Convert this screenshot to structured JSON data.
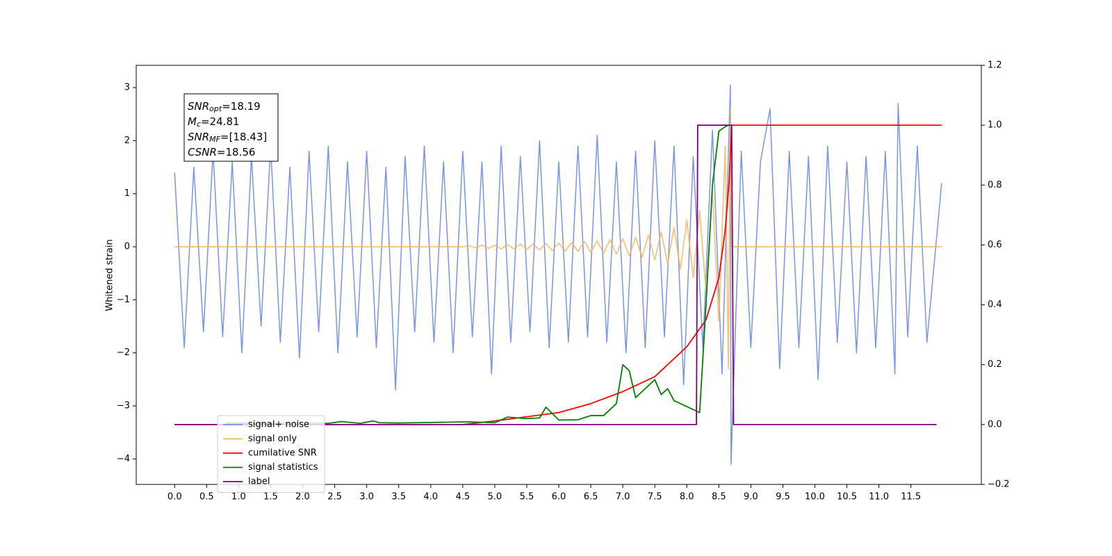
{
  "chart_data": {
    "type": "line",
    "ylabel": "Whitened strain",
    "annotation": [
      {
        "main": "SNR",
        "sub": "opt",
        "rest": "=18.19"
      },
      {
        "main": "M",
        "sub": "c",
        "rest": "=24.81"
      },
      {
        "main": "SNR",
        "sub": "MF",
        "rest": "=[18.43]"
      },
      {
        "main": "CSNR",
        "sub": "",
        "rest": "=18.56"
      }
    ],
    "xlim": [
      -0.6,
      12.6
    ],
    "ylim": [
      -4.48,
      3.42
    ],
    "y2lim": [
      -0.2,
      1.2
    ],
    "xticks": [
      {
        "value": 0,
        "label": "0.0"
      },
      0.5,
      {
        "value": 1,
        "label": "1.0"
      },
      1.5,
      {
        "value": 2,
        "label": "2.0"
      },
      2.5,
      {
        "value": 3,
        "label": "3.0"
      },
      3.5,
      {
        "value": 4,
        "label": "4.0"
      },
      4.5,
      {
        "value": 5,
        "label": "5.0"
      },
      5.5,
      {
        "value": 6,
        "label": "6.0"
      },
      6.5,
      {
        "value": 7,
        "label": "7.0"
      },
      7.5,
      {
        "value": 8,
        "label": "8.0"
      },
      8.5,
      {
        "value": 9,
        "label": "9.0"
      },
      9.5,
      {
        "value": 10,
        "label": "10.0"
      },
      10.5,
      {
        "value": 11,
        "label": "11.0"
      },
      11.5
    ],
    "yticks": [
      {
        "value": -4,
        "label": "−4"
      },
      {
        "value": -3,
        "label": "−3"
      },
      {
        "value": -2,
        "label": "−2"
      },
      {
        "value": -1,
        "label": "−1"
      },
      0,
      1,
      2,
      3
    ],
    "y2ticks": [
      {
        "value": -0.2,
        "label": "−0.2"
      },
      {
        "value": 0,
        "label": "0.0"
      },
      0.2,
      0.4,
      0.6,
      0.8,
      {
        "value": 1,
        "label": "1.0"
      },
      1.2
    ],
    "series": [
      {
        "name": "signal+ noise",
        "color": "#7895e8",
        "x": [
          0,
          0.15,
          0.3,
          0.45,
          0.6,
          0.75,
          0.9,
          1.05,
          1.2,
          1.35,
          1.5,
          1.65,
          1.8,
          1.95,
          2.1,
          2.25,
          2.4,
          2.55,
          2.7,
          2.85,
          3,
          3.15,
          3.3,
          3.45,
          3.6,
          3.75,
          3.9,
          4.05,
          4.2,
          4.35,
          4.5,
          4.65,
          4.8,
          4.95,
          5.1,
          5.25,
          5.4,
          5.55,
          5.7,
          5.85,
          6,
          6.15,
          6.3,
          6.45,
          6.6,
          6.75,
          6.9,
          7.05,
          7.2,
          7.35,
          7.5,
          7.65,
          7.8,
          7.95,
          8.1,
          8.25,
          8.4,
          8.55,
          8.68,
          8.69,
          8.85,
          9,
          9.15,
          9.3,
          9.45,
          9.6,
          9.75,
          9.9,
          10.05,
          10.2,
          10.35,
          10.5,
          10.65,
          10.8,
          10.95,
          11.1,
          11.25,
          11.3,
          11.45,
          11.6,
          11.75,
          11.98
        ],
        "values": [
          1.4,
          -1.9,
          1.5,
          -1.6,
          1.8,
          -1.7,
          1.6,
          -2.0,
          1.7,
          -1.5,
          1.9,
          -1.8,
          1.5,
          -2.1,
          1.8,
          -1.6,
          1.9,
          -2.0,
          1.6,
          -1.7,
          1.8,
          -1.9,
          1.5,
          -2.7,
          1.7,
          -1.6,
          1.9,
          -1.8,
          1.6,
          -2.0,
          1.8,
          -1.7,
          1.6,
          -2.4,
          1.9,
          -1.8,
          1.7,
          -1.6,
          2.0,
          -1.9,
          1.6,
          -1.8,
          1.9,
          -1.7,
          2.1,
          -1.8,
          1.6,
          -2.0,
          1.8,
          -1.9,
          2.0,
          -1.7,
          1.9,
          -2.6,
          1.7,
          -1.9,
          2.2,
          -2.4,
          3.05,
          -4.1,
          1.8,
          -1.9,
          1.6,
          2.6,
          -2.3,
          1.8,
          -1.9,
          1.7,
          -2.5,
          1.9,
          -1.8,
          1.6,
          -2.0,
          1.7,
          -1.9,
          1.8,
          -2.4,
          2.7,
          -1.7,
          1.9,
          -1.8,
          1.2
        ]
      },
      {
        "name": "signal only",
        "color": "#f5b55a",
        "x": [
          0,
          4.5,
          4.6,
          4.7,
          4.8,
          4.9,
          5.0,
          5.1,
          5.2,
          5.3,
          5.4,
          5.5,
          5.6,
          5.7,
          5.8,
          5.9,
          6.0,
          6.1,
          6.2,
          6.3,
          6.4,
          6.5,
          6.6,
          6.7,
          6.8,
          6.9,
          7.0,
          7.1,
          7.2,
          7.3,
          7.4,
          7.5,
          7.6,
          7.7,
          7.8,
          7.9,
          8.0,
          8.1,
          8.2,
          8.3,
          8.4,
          8.5,
          8.6,
          8.65,
          8.68,
          8.7,
          11.98
        ],
        "values": [
          0,
          0,
          0.02,
          -0.02,
          0.03,
          -0.03,
          0.03,
          -0.04,
          0.04,
          -0.04,
          0.05,
          -0.05,
          0.05,
          -0.06,
          0.06,
          -0.07,
          0.07,
          -0.08,
          0.08,
          -0.09,
          0.1,
          -0.1,
          0.11,
          -0.12,
          0.13,
          -0.14,
          0.15,
          -0.17,
          0.18,
          -0.2,
          0.22,
          -0.25,
          0.28,
          -0.32,
          0.36,
          -0.42,
          0.5,
          -0.58,
          0.68,
          -0.85,
          1.05,
          -1.4,
          1.9,
          -2.3,
          2.6,
          0,
          0
        ]
      },
      {
        "name": "cumilative SNR",
        "color": "#ff0000",
        "axis": "y2",
        "x": [
          0,
          4.5,
          5.0,
          5.5,
          6.0,
          6.5,
          7.0,
          7.5,
          8.0,
          8.3,
          8.5,
          8.6,
          8.66,
          8.7,
          11.98
        ],
        "values": [
          0,
          0,
          0.012,
          0.026,
          0.04,
          0.07,
          0.11,
          0.16,
          0.26,
          0.35,
          0.49,
          0.65,
          0.81,
          1.0,
          1.0
        ]
      },
      {
        "name": "signal statistics",
        "color": "#008000",
        "axis": "y2",
        "x": [
          0.8,
          1.5,
          2.0,
          2.4,
          2.6,
          2.9,
          3.1,
          3.2,
          3.5,
          4.0,
          4.3,
          4.6,
          5.0,
          5.2,
          5.5,
          5.7,
          5.8,
          6.0,
          6.3,
          6.5,
          6.7,
          6.9,
          7.0,
          7.1,
          7.2,
          7.3,
          7.5,
          7.6,
          7.7,
          7.8,
          8.0,
          8.1,
          8.2,
          8.3,
          8.4,
          8.5,
          8.6,
          8.65
        ],
        "values": [
          0.005,
          0.004,
          0.006,
          0.004,
          0.01,
          0.004,
          0.012,
          0.006,
          0.005,
          0.007,
          0.008,
          0.009,
          0.006,
          0.025,
          0.02,
          0.022,
          0.058,
          0.015,
          0.016,
          0.03,
          0.03,
          0.07,
          0.2,
          0.18,
          0.09,
          0.11,
          0.15,
          0.1,
          0.12,
          0.08,
          0.06,
          0.05,
          0.04,
          0.4,
          0.8,
          0.98,
          0.995,
          1.0
        ]
      },
      {
        "name": "label",
        "color": "#800080",
        "axis": "y2",
        "x": [
          0,
          8.15,
          8.17,
          8.7,
          8.73,
          11.9
        ],
        "values": [
          0,
          0,
          1,
          1,
          0,
          0
        ]
      }
    ],
    "legend": "lower left"
  }
}
